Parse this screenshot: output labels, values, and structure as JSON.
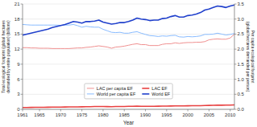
{
  "chart_data": {
    "type": "line",
    "x_label": "Year",
    "y_label": "Total ecological footprint (global hectares\ndemanded by entire population) (billions)",
    "y2_label": "Per capita ecological footprint\n(global hectares demanded per person)",
    "x": [
      1961,
      1962,
      1963,
      1964,
      1965,
      1966,
      1967,
      1968,
      1969,
      1970,
      1971,
      1972,
      1973,
      1974,
      1975,
      1976,
      1977,
      1978,
      1979,
      1980,
      1981,
      1982,
      1983,
      1984,
      1985,
      1986,
      1987,
      1988,
      1989,
      1990,
      1991,
      1992,
      1993,
      1994,
      1995,
      1996,
      1997,
      1998,
      1999,
      2000,
      2001,
      2002,
      2003,
      2004,
      2005,
      2006,
      2007,
      2008,
      2009,
      2010,
      2011
    ],
    "series": [
      {
        "name": "LAC per capita EF",
        "color": "#f09090",
        "axis": "y2",
        "values": [
          2.05,
          2.05,
          2.04,
          2.04,
          2.03,
          2.03,
          2.03,
          2.02,
          2.02,
          2.02,
          2.02,
          2.02,
          2.03,
          2.04,
          2.04,
          2.06,
          2.07,
          2.09,
          2.11,
          2.09,
          2.07,
          2.03,
          2.07,
          2.08,
          2.1,
          2.13,
          2.16,
          2.18,
          2.15,
          2.15,
          2.12,
          2.12,
          2.12,
          2.16,
          2.18,
          2.18,
          2.21,
          2.19,
          2.21,
          2.22,
          2.22,
          2.23,
          2.23,
          2.25,
          2.31,
          2.33,
          2.34,
          2.33,
          2.33,
          2.37,
          2.5
        ]
      },
      {
        "name": "LAC EF",
        "color": "#e84040",
        "values": [
          0.35,
          0.37,
          0.38,
          0.39,
          0.4,
          0.41,
          0.42,
          0.43,
          0.44,
          0.45,
          0.46,
          0.47,
          0.48,
          0.49,
          0.5,
          0.52,
          0.53,
          0.55,
          0.56,
          0.55,
          0.54,
          0.53,
          0.55,
          0.56,
          0.57,
          0.59,
          0.61,
          0.62,
          0.6,
          0.61,
          0.6,
          0.61,
          0.62,
          0.64,
          0.65,
          0.66,
          0.68,
          0.68,
          0.69,
          0.7,
          0.71,
          0.72,
          0.73,
          0.75,
          0.78,
          0.8,
          0.82,
          0.82,
          0.83,
          0.85,
          0.87
        ]
      },
      {
        "name": "World per capita EF",
        "color": "#88bbff",
        "axis": "y2",
        "values": [
          2.82,
          2.81,
          2.8,
          2.8,
          2.8,
          2.8,
          2.8,
          2.8,
          2.8,
          2.79,
          2.8,
          2.8,
          2.82,
          2.78,
          2.73,
          2.76,
          2.74,
          2.73,
          2.73,
          2.66,
          2.61,
          2.56,
          2.55,
          2.56,
          2.53,
          2.53,
          2.56,
          2.58,
          2.53,
          2.49,
          2.45,
          2.44,
          2.42,
          2.44,
          2.43,
          2.45,
          2.46,
          2.41,
          2.4,
          2.42,
          2.41,
          2.42,
          2.44,
          2.49,
          2.49,
          2.5,
          2.53,
          2.5,
          2.47,
          2.49,
          2.52
        ]
      },
      {
        "name": "World EF",
        "color": "#2040cc",
        "values": [
          14.8,
          15.0,
          15.2,
          15.4,
          15.6,
          15.8,
          16.0,
          16.3,
          16.5,
          16.7,
          16.9,
          17.2,
          17.5,
          17.4,
          17.2,
          17.5,
          17.5,
          17.6,
          17.8,
          17.4,
          17.2,
          17.0,
          17.1,
          17.3,
          17.3,
          17.5,
          17.8,
          18.2,
          18.0,
          17.9,
          17.7,
          17.8,
          17.8,
          18.1,
          18.2,
          18.5,
          18.7,
          18.4,
          18.4,
          18.7,
          18.8,
          19.0,
          19.3,
          19.8,
          20.0,
          20.3,
          20.6,
          20.5,
          20.3,
          20.6,
          20.8
        ]
      }
    ],
    "xlim": [
      1961,
      2011
    ],
    "xticks": [
      1961,
      1965,
      1970,
      1975,
      1980,
      1985,
      1990,
      1995,
      2000,
      2005,
      2010
    ],
    "ylim": [
      0,
      21
    ],
    "yticks": [
      0,
      3,
      6,
      9,
      12,
      15,
      18,
      21
    ],
    "y2lim": [
      0,
      3.5
    ],
    "y2ticks": [
      {
        "value": 0.0,
        "label": "0.0"
      },
      0.5,
      {
        "value": 1.0,
        "label": "1.0"
      },
      1.5,
      {
        "value": 2.0,
        "label": "2.0"
      },
      2.5,
      {
        "value": 3.0,
        "label": "3.0"
      },
      3.5
    ],
    "grid": true,
    "legend": "bottom"
  }
}
